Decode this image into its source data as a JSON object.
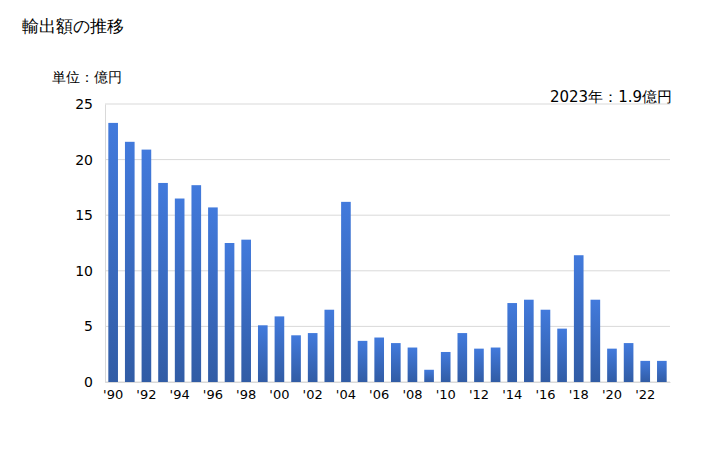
{
  "chart_data": {
    "type": "bar",
    "title": "輸出額の推移",
    "y_label": "単位：億円",
    "annotation": "2023年：1.9億円",
    "categories": [
      "'90",
      null,
      "'92",
      null,
      "'94",
      null,
      "'96",
      null,
      "'98",
      null,
      "'00",
      null,
      "'02",
      null,
      "'04",
      null,
      "'06",
      null,
      "'08",
      null,
      "'10",
      null,
      "'12",
      null,
      "'14",
      null,
      "'16",
      null,
      "'18",
      null,
      "'20",
      null,
      "'22",
      null
    ],
    "values": [
      23.3,
      21.6,
      20.9,
      17.9,
      16.5,
      17.7,
      15.7,
      12.5,
      12.8,
      5.1,
      5.9,
      4.2,
      4.4,
      6.5,
      16.2,
      3.7,
      4.0,
      3.5,
      3.1,
      1.1,
      2.7,
      4.4,
      3.0,
      3.1,
      7.1,
      7.4,
      6.5,
      4.8,
      11.4,
      7.4,
      3.0,
      3.5,
      1.9,
      1.9
    ],
    "color": "#3a6cc2",
    "ylim": [
      0,
      25
    ],
    "yticks": [
      0,
      5,
      10,
      15,
      20,
      25
    ],
    "grid": true
  }
}
